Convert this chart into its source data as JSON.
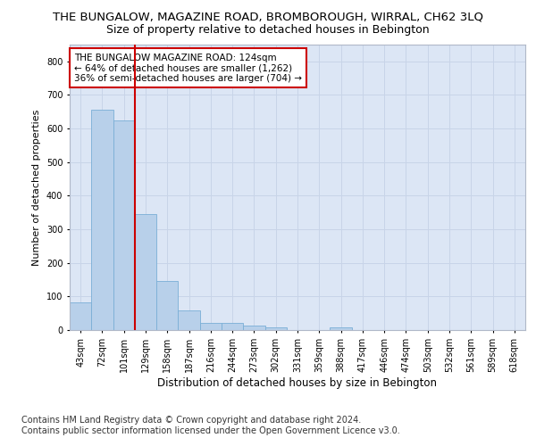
{
  "title1": "THE BUNGALOW, MAGAZINE ROAD, BROMBOROUGH, WIRRAL, CH62 3LQ",
  "title2": "Size of property relative to detached houses in Bebington",
  "xlabel": "Distribution of detached houses by size in Bebington",
  "ylabel": "Number of detached properties",
  "footnote": "Contains HM Land Registry data © Crown copyright and database right 2024.\nContains public sector information licensed under the Open Government Licence v3.0.",
  "categories": [
    "43sqm",
    "72sqm",
    "101sqm",
    "129sqm",
    "158sqm",
    "187sqm",
    "216sqm",
    "244sqm",
    "273sqm",
    "302sqm",
    "331sqm",
    "359sqm",
    "388sqm",
    "417sqm",
    "446sqm",
    "474sqm",
    "503sqm",
    "532sqm",
    "561sqm",
    "589sqm",
    "618sqm"
  ],
  "values": [
    83,
    657,
    625,
    345,
    145,
    58,
    22,
    20,
    14,
    8,
    0,
    0,
    8,
    0,
    0,
    0,
    0,
    0,
    0,
    0,
    0
  ],
  "bar_color": "#b8d0ea",
  "bar_edge_color": "#7aaed6",
  "vline_color": "#cc0000",
  "annotation_title": "THE BUNGALOW MAGAZINE ROAD: 124sqm",
  "annotation_line1": "← 64% of detached houses are smaller (1,262)",
  "annotation_line2": "36% of semi-detached houses are larger (704) →",
  "annotation_box_color": "#ffffff",
  "annotation_box_edge": "#cc0000",
  "ylim": [
    0,
    850
  ],
  "yticks": [
    0,
    100,
    200,
    300,
    400,
    500,
    600,
    700,
    800
  ],
  "grid_color": "#c8d4e8",
  "bg_color": "#dce6f5",
  "title1_fontsize": 9.5,
  "title2_fontsize": 9,
  "axis_label_fontsize": 8.5,
  "tick_fontsize": 7,
  "footnote_fontsize": 7,
  "ylabel_fontsize": 8
}
